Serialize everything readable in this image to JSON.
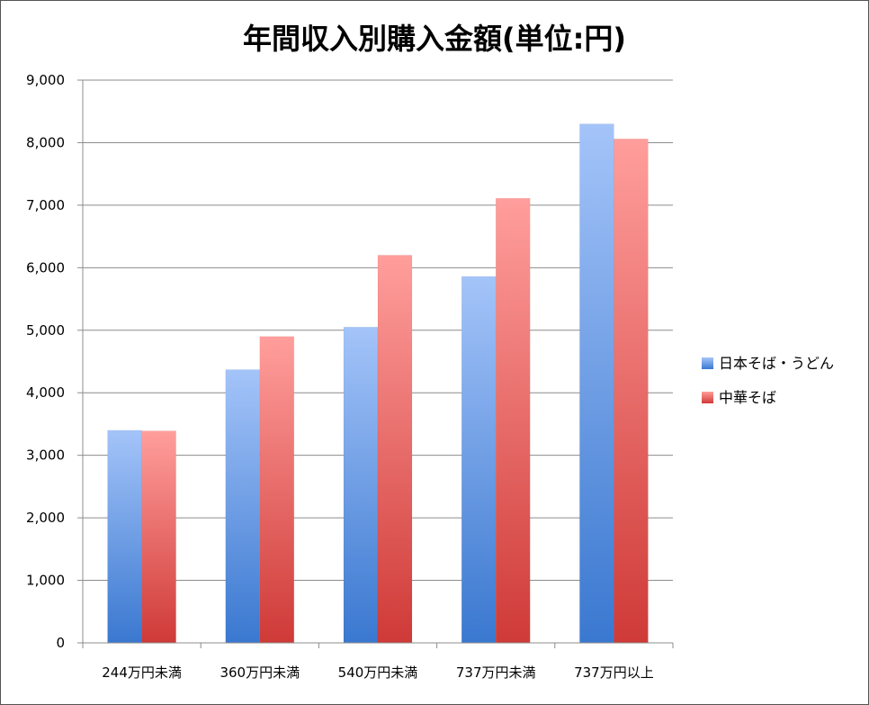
{
  "chart_data": {
    "type": "bar",
    "title": "年間収入別購入金額(単位:円)",
    "xlabel": "",
    "ylabel": "",
    "categories": [
      "244万円未満",
      "360万円未満",
      "540万円未満",
      "737万円未満",
      "737万円以上"
    ],
    "series": [
      {
        "name": "日本そば・うどん",
        "values": [
          3400,
          4370,
          5050,
          5860,
          8300
        ],
        "color": "#5b8fd9"
      },
      {
        "name": "中華そば",
        "values": [
          3390,
          4900,
          6200,
          7110,
          8060
        ],
        "color": "#dd5a57"
      }
    ],
    "ylim": [
      0,
      9000
    ],
    "yticks": [
      "0",
      "1,000",
      "2,000",
      "3,000",
      "4,000",
      "5,000",
      "6,000",
      "7,000",
      "8,000",
      "9,000"
    ],
    "grid": true,
    "legend_position": "right"
  }
}
